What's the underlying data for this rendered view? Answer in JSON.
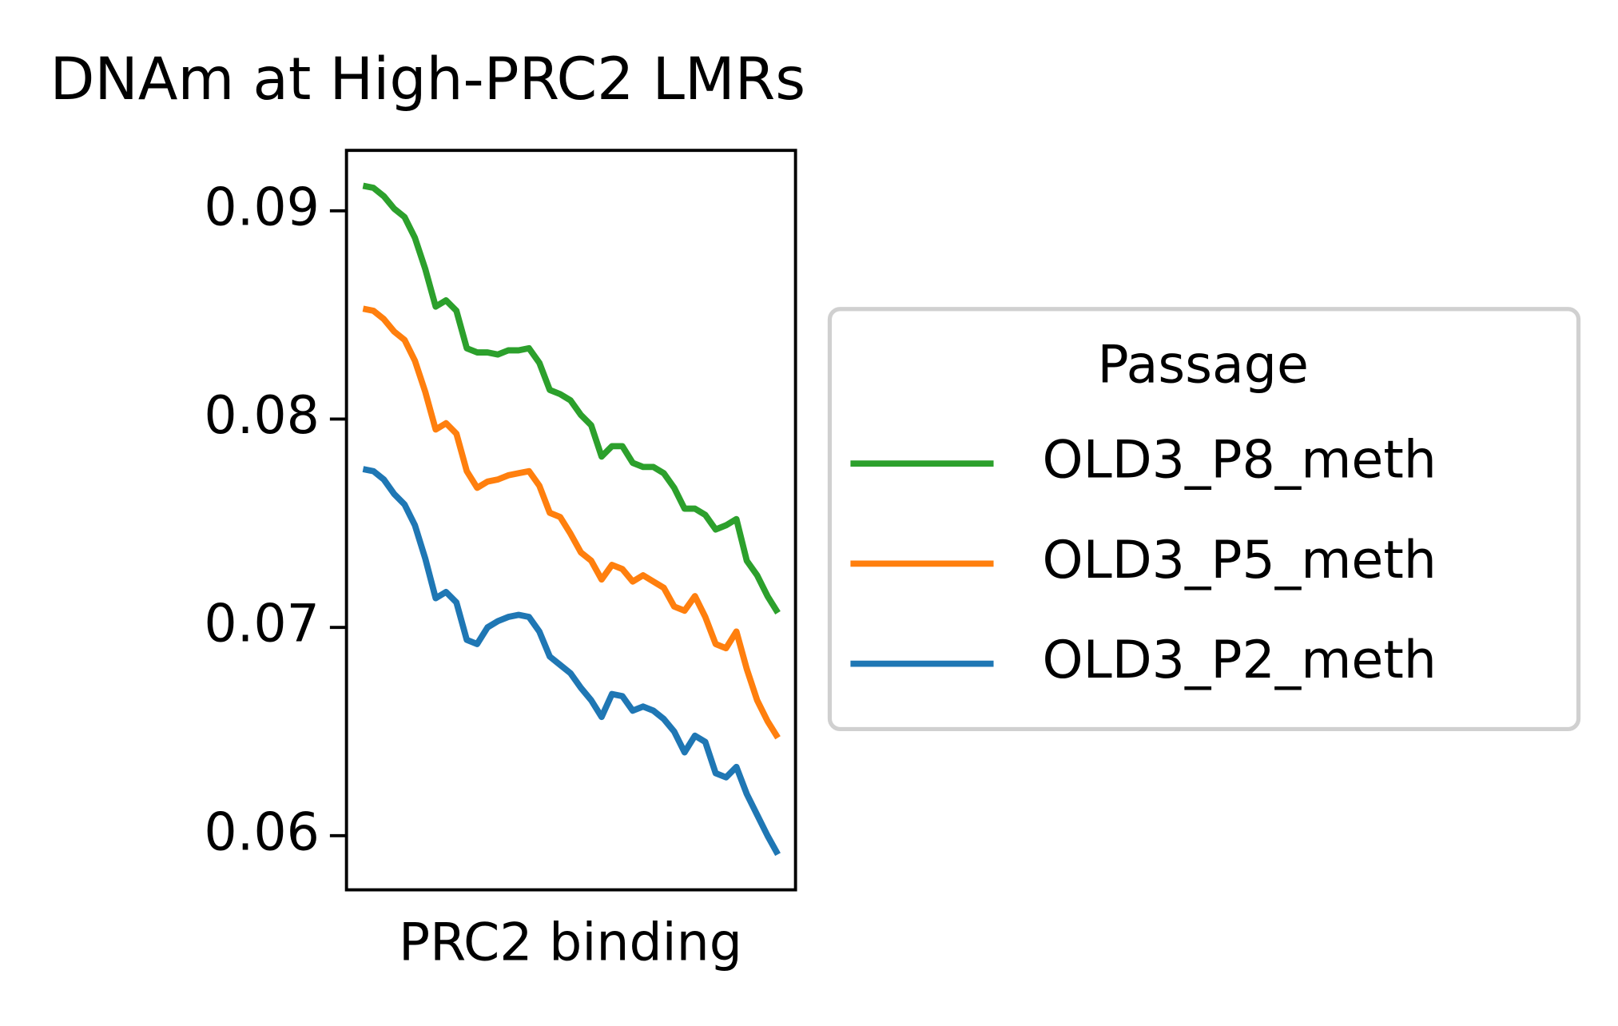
{
  "chart_data": {
    "type": "line",
    "title": "DNAm at High-PRC2 LMRs",
    "xlabel": "PRC2 binding",
    "x": [
      0,
      1,
      2,
      3,
      4,
      5,
      6,
      7,
      8,
      9,
      10,
      11,
      12,
      13,
      14,
      15,
      16,
      17,
      18,
      19,
      20,
      21,
      22,
      23,
      24,
      25,
      26,
      27,
      28,
      29,
      30,
      31,
      32,
      33,
      34,
      35,
      36,
      37,
      38,
      39,
      40
    ],
    "xlim": [
      -1.6,
      41.7
    ],
    "ylim": [
      0.0574,
      0.0929
    ],
    "yticks": [
      0.06,
      0.07,
      0.08,
      0.09
    ],
    "legend_title": "Passage",
    "legend_position": "right",
    "series": [
      {
        "name": "OLD3_P8_meth",
        "color": "#2ca02c",
        "values": [
          0.0912,
          0.0911,
          0.0907,
          0.0901,
          0.0897,
          0.0887,
          0.0872,
          0.0854,
          0.0857,
          0.0852,
          0.0834,
          0.0832,
          0.0832,
          0.0831,
          0.0833,
          0.0833,
          0.0834,
          0.0827,
          0.0814,
          0.0812,
          0.0809,
          0.0802,
          0.0797,
          0.0782,
          0.0787,
          0.0787,
          0.0779,
          0.0777,
          0.0777,
          0.0774,
          0.0767,
          0.0757,
          0.0757,
          0.0754,
          0.0747,
          0.0749,
          0.0752,
          0.0732,
          0.0725,
          0.0715,
          0.0707
        ]
      },
      {
        "name": "OLD3_P5_meth",
        "color": "#ff7f0e",
        "values": [
          0.0853,
          0.0852,
          0.0848,
          0.0842,
          0.0838,
          0.0828,
          0.0813,
          0.0795,
          0.0798,
          0.0793,
          0.0775,
          0.0767,
          0.077,
          0.0771,
          0.0773,
          0.0774,
          0.0775,
          0.0768,
          0.0755,
          0.0753,
          0.0745,
          0.0736,
          0.0732,
          0.0723,
          0.073,
          0.0728,
          0.0722,
          0.0725,
          0.0722,
          0.0719,
          0.071,
          0.0708,
          0.0715,
          0.0705,
          0.0692,
          0.069,
          0.0698,
          0.068,
          0.0665,
          0.0655,
          0.0647
        ]
      },
      {
        "name": "OLD3_P2_meth",
        "color": "#1f77b4",
        "values": [
          0.0776,
          0.0775,
          0.0771,
          0.0764,
          0.0759,
          0.0749,
          0.0733,
          0.0714,
          0.0717,
          0.0712,
          0.0694,
          0.0692,
          0.07,
          0.0703,
          0.0705,
          0.0706,
          0.0705,
          0.0698,
          0.0686,
          0.0682,
          0.0678,
          0.0671,
          0.0665,
          0.0657,
          0.0668,
          0.0667,
          0.066,
          0.0662,
          0.066,
          0.0656,
          0.065,
          0.064,
          0.0648,
          0.0645,
          0.063,
          0.0628,
          0.0633,
          0.062,
          0.061,
          0.06,
          0.0591
        ]
      }
    ]
  }
}
